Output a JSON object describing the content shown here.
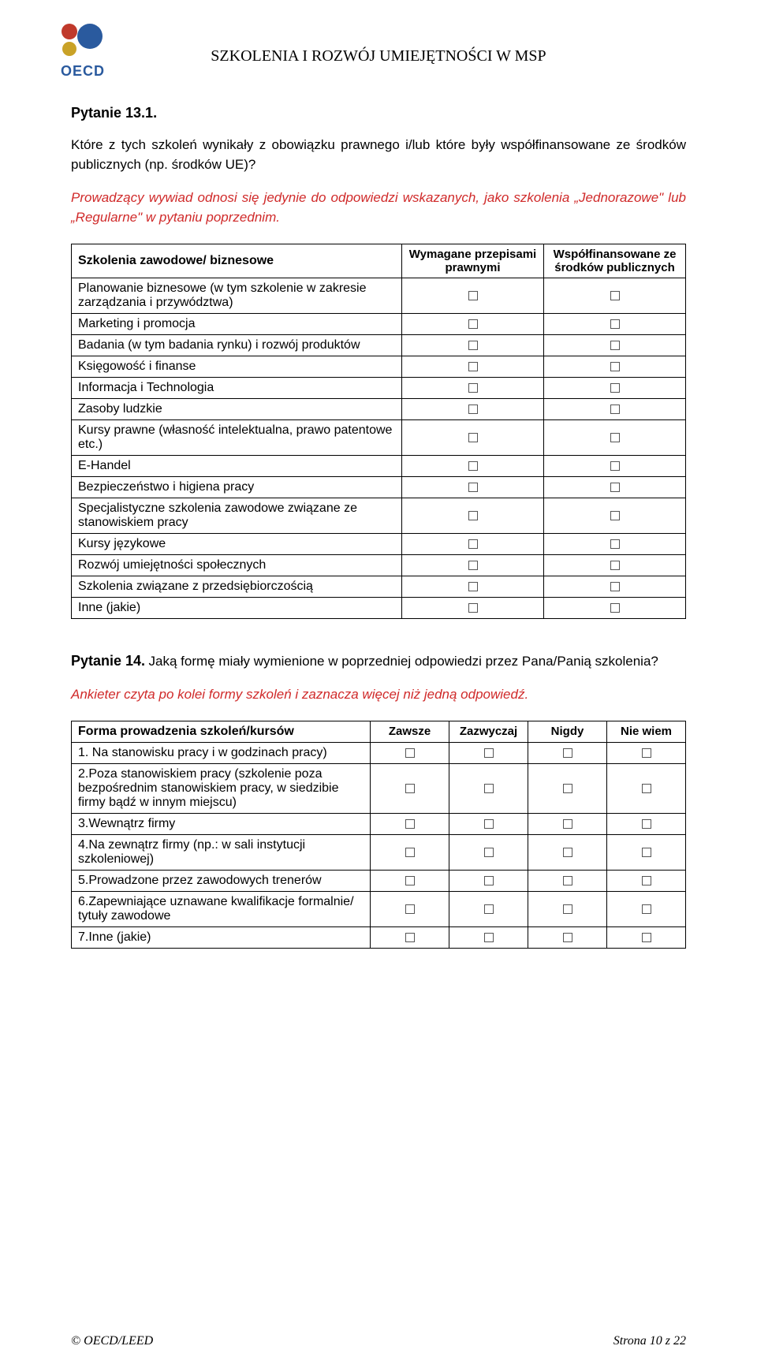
{
  "logo_text": "OECD",
  "logo_colors": {
    "blue": "#2a5a9e",
    "red": "#c0392b",
    "gold": "#c9a227"
  },
  "header_title": "SZKOLENIA I ROZWÓJ UMIEJĘTNOŚCI W MSP",
  "q13": {
    "label": "Pytanie 13.1.",
    "text": "Które z tych szkoleń wynikały z obowiązku prawnego i/lub które były współfinansowane ze środków publicznych (np. środków UE)?",
    "instruction": "Prowadzący wywiad odnosi się jedynie do odpowiedzi wskazanych, jako szkolenia „Jednorazowe\" lub „Regularne\" w pytaniu poprzednim."
  },
  "table1": {
    "col_row_header": "Szkolenia zawodowe/ biznesowe",
    "col2": "Wymagane przepisami prawnymi",
    "col3": "Współfinansowane ze środków publicznych",
    "rows": [
      "Planowanie biznesowe (w tym szkolenie w zakresie zarządzania i przywództwa)",
      "Marketing i promocja",
      "Badania (w tym badania rynku) i rozwój produktów",
      "Księgowość i finanse",
      "Informacja i Technologia",
      "Zasoby ludzkie",
      "Kursy prawne (własność intelektualna, prawo patentowe etc.)",
      "E-Handel",
      "Bezpieczeństwo i higiena pracy",
      "Specjalistyczne szkolenia zawodowe związane ze stanowiskiem pracy",
      "Kursy językowe",
      "Rozwój umiejętności społecznych",
      "Szkolenia związane z przedsiębiorczością",
      "Inne (jakie)"
    ]
  },
  "q14": {
    "label": "Pytanie 14.",
    "text": " Jaką formę miały wymienione w poprzedniej odpowiedzi przez Pana/Panią szkolenia?",
    "instruction": "Ankieter czyta po kolei formy szkoleń i zaznacza więcej niż jedną odpowiedź."
  },
  "table2": {
    "col_row_header": "Forma prowadzenia szkoleń/kursów",
    "col2": "Zawsze",
    "col3": "Zazwyczaj",
    "col4": "Nigdy",
    "col5": "Nie wiem",
    "rows": [
      "1. Na stanowisku pracy i w godzinach pracy)",
      "2.Poza stanowiskiem pracy (szkolenie poza bezpośrednim stanowiskiem pracy, w siedzibie firmy bądź w innym miejscu)",
      "3.Wewnątrz firmy",
      "4.Na zewnątrz firmy (np.: w sali instytucji szkoleniowej)",
      "5.Prowadzone przez zawodowych trenerów",
      "6.Zapewniające uznawane kwalifikacje formalnie/ tytuły zawodowe",
      "7.Inne (jakie)"
    ]
  },
  "footer": {
    "left": "© OECD/LEED",
    "right": "Strona 10 z 22"
  }
}
